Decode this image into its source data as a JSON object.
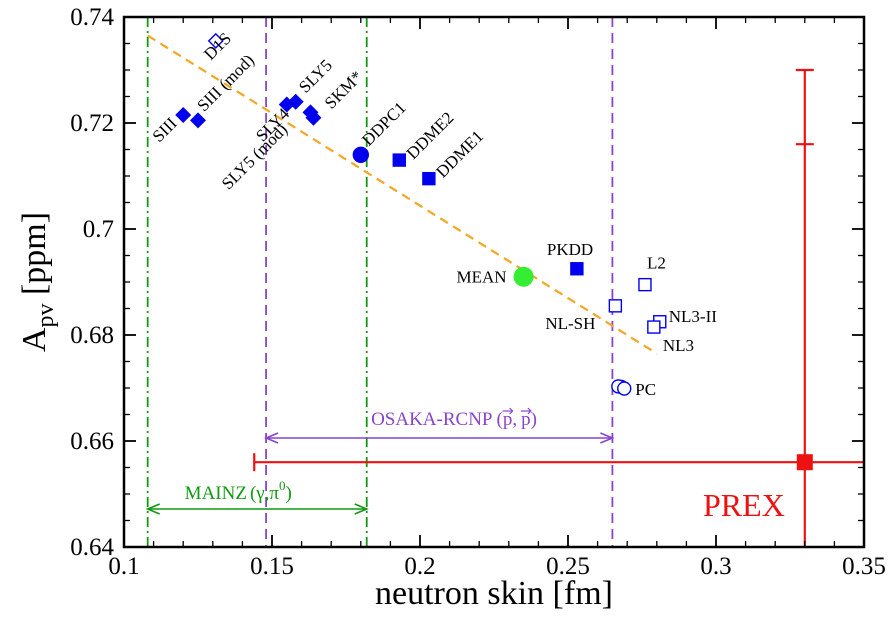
{
  "chart_data": {
    "type": "scatter",
    "xlabel": "neutron skin [fm]",
    "ylabel_main": "A",
    "ylabel_sub": "pv",
    "ylabel_unit": " [ppm]",
    "xlim": [
      0.1,
      0.35
    ],
    "ylim": [
      0.64,
      0.74
    ],
    "x_ticks": [
      {
        "value": 0.1,
        "label": "0.1"
      },
      {
        "value": 0.15,
        "label": "0.15"
      },
      {
        "value": 0.2,
        "label": "0.2"
      },
      {
        "value": 0.25,
        "label": "0.25"
      },
      {
        "value": 0.3,
        "label": "0.3"
      },
      {
        "value": 0.35,
        "label": "0.35"
      }
    ],
    "y_ticks": [
      {
        "value": 0.64,
        "label": "0.64"
      },
      {
        "value": 0.66,
        "label": "0.66"
      },
      {
        "value": 0.68,
        "label": "0.68"
      },
      {
        "value": 0.7,
        "label": "0.7"
      },
      {
        "value": 0.72,
        "label": "0.72"
      },
      {
        "value": 0.74,
        "label": "0.74"
      }
    ],
    "colors": {
      "blue": "#0000ee",
      "orange": "#f5a623",
      "purple": "#8844cc",
      "green": "#119911",
      "red": "#ee1111",
      "mean": "#33ee33"
    },
    "points": [
      {
        "label": "D1S",
        "x": 0.131,
        "y": 0.7355,
        "shape": "diamond",
        "fill": false,
        "label_dx": -5,
        "label_dy": 20,
        "angle": -45
      },
      {
        "label": "SIII",
        "x": 0.12,
        "y": 0.7215,
        "shape": "diamond",
        "fill": true,
        "label_dx": -24,
        "label_dy": 28,
        "angle": -45
      },
      {
        "label": "SIII (mod)",
        "x": 0.125,
        "y": 0.7205,
        "shape": "diamond",
        "fill": true,
        "label_dx": 6,
        "label_dy": -8,
        "angle": -45
      },
      {
        "label": "SLY4",
        "x": 0.155,
        "y": 0.7235,
        "shape": "diamond",
        "fill": true,
        "label_dx": -24,
        "label_dy": 38,
        "angle": -45
      },
      {
        "label": "SLY5",
        "x": 0.158,
        "y": 0.724,
        "shape": "diamond",
        "fill": true,
        "label_dx": 10,
        "label_dy": -8,
        "angle": -45
      },
      {
        "label": "SLY5 (mod)",
        "x": 0.163,
        "y": 0.722,
        "shape": "diamond",
        "fill": true,
        "label_dx": -82,
        "label_dy": 78,
        "angle": -45
      },
      {
        "label": "SKM*",
        "x": 0.164,
        "y": 0.721,
        "shape": "diamond",
        "fill": true,
        "label_dx": 18,
        "label_dy": -8,
        "angle": -45
      },
      {
        "label": "DDPC1",
        "x": 0.18,
        "y": 0.714,
        "shape": "circle",
        "fill": true,
        "label_dx": 8,
        "label_dy": -8,
        "angle": -45
      },
      {
        "label": "DDME2",
        "x": 0.193,
        "y": 0.713,
        "shape": "square",
        "fill": true,
        "label_dx": 14,
        "label_dy": 0,
        "angle": -45
      },
      {
        "label": "DDME1",
        "x": 0.203,
        "y": 0.7095,
        "shape": "square",
        "fill": true,
        "label_dx": 14,
        "label_dy": 0,
        "angle": -45
      },
      {
        "label": "PKDD",
        "x": 0.253,
        "y": 0.6925,
        "shape": "square",
        "fill": true,
        "label_dx": -30,
        "label_dy": -14,
        "angle": 0
      },
      {
        "label": "L2",
        "x": 0.276,
        "y": 0.6895,
        "shape": "square",
        "fill": false,
        "label_dx": 2,
        "label_dy": -16,
        "angle": 0
      },
      {
        "label": "NL-SH",
        "x": 0.266,
        "y": 0.6855,
        "shape": "square",
        "fill": false,
        "label_dx": -70,
        "label_dy": 23,
        "angle": 0
      },
      {
        "label": "NL3-II",
        "x": 0.281,
        "y": 0.6825,
        "shape": "square",
        "fill": false,
        "label_dx": 9,
        "label_dy": 0,
        "angle": 0
      },
      {
        "label": "NL3",
        "x": 0.279,
        "y": 0.6815,
        "shape": "square",
        "fill": false,
        "label_dx": 9,
        "label_dy": 24,
        "angle": 0
      },
      {
        "label": "PC",
        "x": 0.268,
        "y": 0.6702,
        "shape": "circle",
        "fill": false,
        "label_dx": 14,
        "label_dy": 8,
        "angle": 0
      },
      {
        "label": "",
        "x": 0.267,
        "y": 0.6703,
        "shape": "circle",
        "fill": false,
        "label_dx": 0,
        "label_dy": 0,
        "angle": 0
      },
      {
        "label": "",
        "x": 0.269,
        "y": 0.6699,
        "shape": "circle",
        "fill": false,
        "label_dx": 0,
        "label_dy": 0,
        "angle": 0
      }
    ],
    "mean_point": {
      "label": "MEAN",
      "x": 0.235,
      "y": 0.691
    },
    "fit_line": {
      "x1": 0.108,
      "y1": 0.7365,
      "x2": 0.28,
      "y2": 0.6765
    },
    "osaka": {
      "label_main": "OSAKA-RCNP (",
      "label_p": "p",
      "label_sep": ",",
      "label_close": ")",
      "x_min": 0.148,
      "x_max": 0.265
    },
    "mainz": {
      "label_main": "MAINZ",
      "label_args": "(γ,π",
      "label_sup": "0",
      "label_close": ")",
      "x_min": 0.108,
      "x_max": 0.182
    },
    "prex": {
      "label": "PREX",
      "x": 0.33,
      "y": 0.656,
      "x_err_min": 0.144,
      "x_err_max": 0.35,
      "y_err_min": 0.64,
      "y_err_max": 0.73,
      "y_tick_inner": 0.716
    }
  }
}
